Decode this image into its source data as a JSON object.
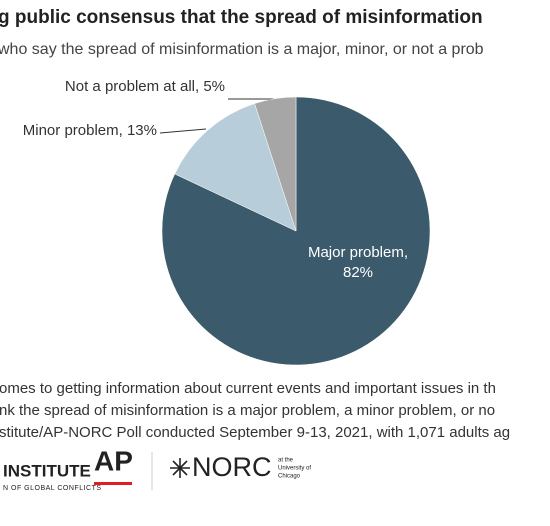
{
  "chart_data": {
    "type": "pie",
    "title": "g public consensus that the spread of misinformation",
    "subtitle": "who say the spread of misinformation is a major, minor, or not a prob",
    "categories": [
      "Major problem",
      "Minor problem",
      "Not a problem at all"
    ],
    "values": [
      82,
      13,
      5
    ],
    "labels": [
      [
        "Major problem,",
        "82%"
      ],
      [
        "Minor problem, 13%"
      ],
      [
        "Not a problem at all, 5%"
      ]
    ],
    "colors": [
      "#3b5a6b",
      "#b7cdd9",
      "#a6a6a6"
    ],
    "notes": [
      "omes to getting information about current events and important issues in th",
      "nk the spread of misinformation is a major problem, a minor problem, or no",
      "stitute/AP-NORC Poll conducted September 9-13, 2021, with 1,071 adults ag"
    ]
  },
  "logos": {
    "institute": "INSTITUTE",
    "institute_sub": "N OF GLOBAL CONFLICTS",
    "ap": "AP",
    "norc": "NORC",
    "norc_sub": [
      "at the",
      "University of",
      "Chicago"
    ]
  }
}
